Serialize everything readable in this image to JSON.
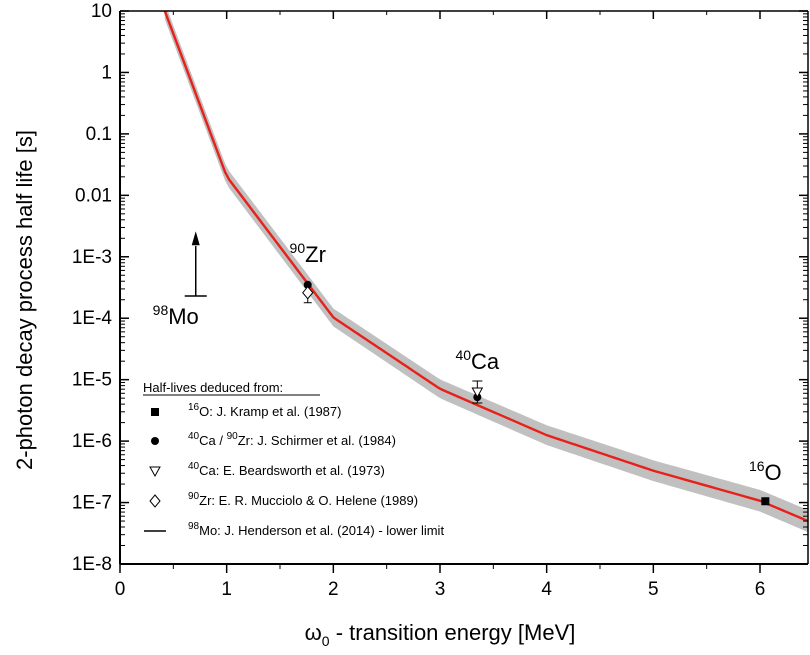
{
  "chart_data": {
    "type": "scatter",
    "xlabel_main": "ω",
    "xlabel_sub": "0",
    "xlabel_rest": " - transition energy [MeV]",
    "ylabel": "2-photon decay process half life [s]",
    "xlim": [
      0,
      6.45
    ],
    "ylim": [
      1e-08,
      10
    ],
    "yscale": "log",
    "x_ticks": [
      "0",
      "1",
      "2",
      "3",
      "4",
      "5",
      "6"
    ],
    "y_ticks": [
      "10",
      "1",
      "0.1",
      "0.01",
      "1E-3",
      "1E-4",
      "1E-5",
      "1E-6",
      "1E-7",
      "1E-8"
    ],
    "theory_curve": {
      "color": "#e8201a",
      "band_color": "#c0c0c0",
      "description_points": [
        [
          0.42,
          10
        ],
        [
          1.0,
          0.0204
        ],
        [
          2.0,
          0.000103
        ],
        [
          3.0,
          7.1e-06
        ],
        [
          4.0,
          1.25e-06
        ],
        [
          5.0,
          3.3e-07
        ],
        [
          6.0,
          1.07e-07
        ],
        [
          6.45,
          5e-08
        ]
      ]
    },
    "series": [
      {
        "name": "O: J. Kramp et al. (1987)",
        "sup": "16",
        "marker": "filled-square",
        "points": [
          [
            6.05,
            1.05e-07
          ]
        ]
      },
      {
        "name": "Ca / ",
        "name2": "Zr: J. Schirmer et al. (1984)",
        "sup": "40",
        "sup2": "90",
        "marker": "filled-circle",
        "points": [
          [
            1.76,
            0.00035
          ],
          [
            3.35,
            5.2e-06
          ]
        ]
      },
      {
        "name": "Ca: E. Beardsworth et al. (1973)",
        "sup": "40",
        "marker": "open-triangle-down",
        "points": [
          [
            3.35,
            6.3e-06
          ]
        ]
      },
      {
        "name": "Zr: E. R. Mucciolo & O. Helene (1989)",
        "sup": "90",
        "marker": "open-diamond",
        "points": [
          [
            1.76,
            0.00026
          ]
        ]
      },
      {
        "name": "Mo: J. Henderson et al. (2014) - lower limit",
        "sup": "98",
        "marker": "line",
        "points": [
          [
            0.71,
            0.00023
          ]
        ]
      }
    ],
    "legend_title": "Half-lives deduced from:",
    "legend_position": "bottom-left",
    "annotations": [
      {
        "sup": "90",
        "text": "Zr",
        "x": 1.76
      },
      {
        "sup": "40",
        "text": "Ca",
        "x": 3.35
      },
      {
        "sup": "16",
        "text": "O",
        "x": 6.05
      },
      {
        "sup": "98",
        "text": "Mo",
        "x": 0.71
      }
    ]
  }
}
